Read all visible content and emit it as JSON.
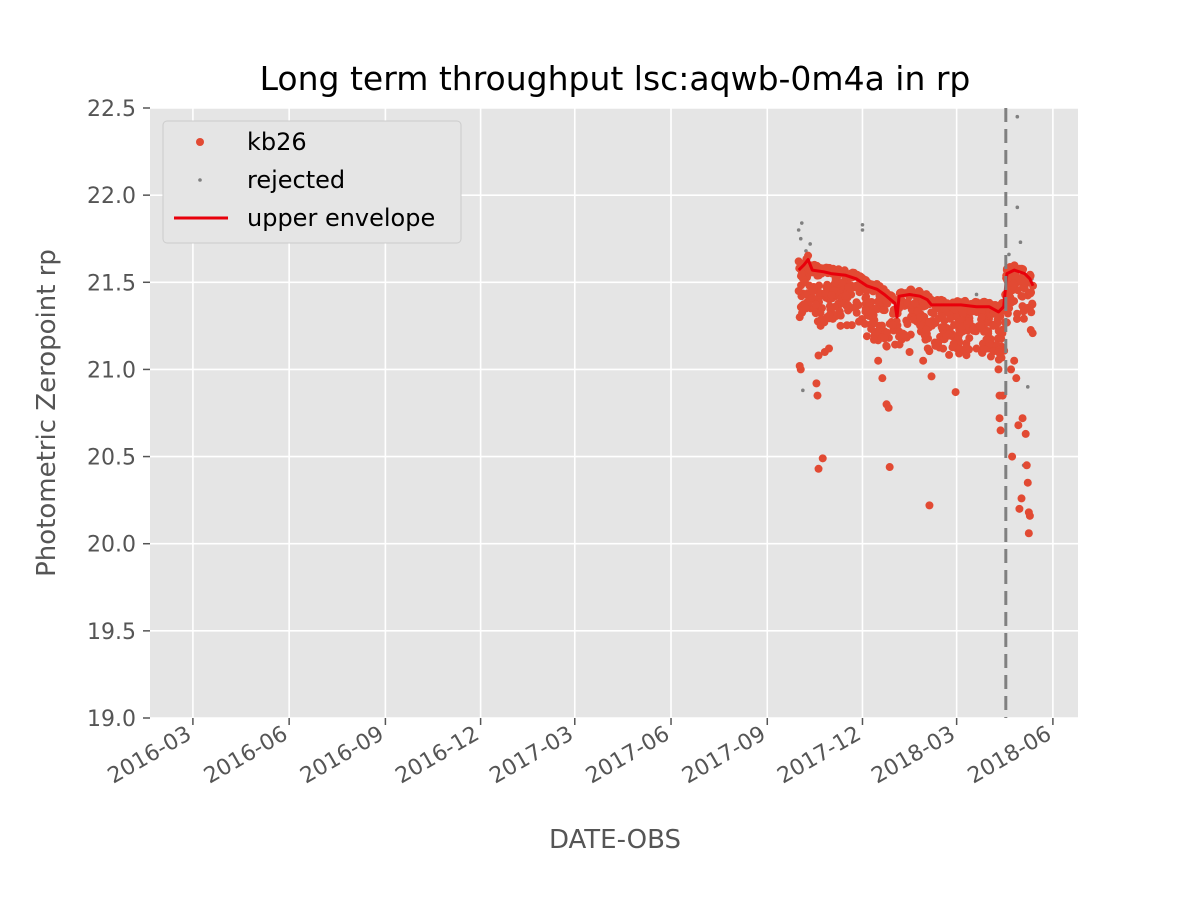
{
  "chart_data": {
    "type": "scatter",
    "title": "Long term throughput  lsc:aqwb-0m4a in rp",
    "xlabel": "DATE-OBS",
    "ylabel": "Photometric Zeropoint rp",
    "xlim": [
      "2016-01-20",
      "2018-06-25"
    ],
    "ylim": [
      19.0,
      22.5
    ],
    "x_ticks": [
      "2016-03",
      "2016-06",
      "2016-09",
      "2016-12",
      "2017-03",
      "2017-06",
      "2017-09",
      "2017-12",
      "2018-03",
      "2018-06"
    ],
    "y_ticks": [
      "19.0",
      "19.5",
      "20.0",
      "20.5",
      "21.0",
      "21.5",
      "22.0",
      "22.5"
    ],
    "grid": true,
    "legend_position": "top-left",
    "vline": {
      "x": "2018-04-17",
      "style": "dashed",
      "color": "#808080"
    },
    "series": [
      {
        "name": "kb26",
        "kind": "points",
        "color": "#e24a33",
        "points": [
          [
            "2017-10-01",
            21.62
          ],
          [
            "2017-10-01",
            21.45
          ],
          [
            "2017-10-02",
            21.3
          ],
          [
            "2017-10-02",
            21.02
          ],
          [
            "2017-10-03",
            21.0
          ],
          [
            "2017-10-04",
            21.55
          ],
          [
            "2017-10-05",
            21.6
          ],
          [
            "2017-10-07",
            21.5
          ],
          [
            "2017-10-08",
            21.35
          ],
          [
            "2017-10-10",
            21.58
          ],
          [
            "2017-10-12",
            21.57
          ],
          [
            "2017-10-14",
            21.45
          ],
          [
            "2017-10-16",
            21.6
          ],
          [
            "2017-10-18",
            20.92
          ],
          [
            "2017-10-19",
            20.85
          ],
          [
            "2017-10-20",
            21.08
          ],
          [
            "2017-10-20",
            20.43
          ],
          [
            "2017-10-22",
            21.25
          ],
          [
            "2017-10-23",
            21.55
          ],
          [
            "2017-10-24",
            20.49
          ],
          [
            "2017-10-26",
            21.1
          ],
          [
            "2017-10-28",
            21.3
          ],
          [
            "2017-10-30",
            21.12
          ],
          [
            "2017-11-02",
            21.55
          ],
          [
            "2017-11-05",
            21.5
          ],
          [
            "2017-11-10",
            21.25
          ],
          [
            "2017-11-15",
            21.53
          ],
          [
            "2017-11-20",
            21.55
          ],
          [
            "2017-11-25",
            21.48
          ],
          [
            "2017-11-30",
            21.5
          ],
          [
            "2017-12-05",
            21.45
          ],
          [
            "2017-12-10",
            21.3
          ],
          [
            "2017-12-12",
            21.17
          ],
          [
            "2017-12-16",
            21.05
          ],
          [
            "2017-12-20",
            20.95
          ],
          [
            "2017-12-24",
            20.8
          ],
          [
            "2017-12-26",
            20.78
          ],
          [
            "2017-12-27",
            20.44
          ],
          [
            "2018-01-01",
            21.4
          ],
          [
            "2018-01-05",
            21.35
          ],
          [
            "2018-01-10",
            21.2
          ],
          [
            "2018-01-15",
            21.1
          ],
          [
            "2018-01-20",
            21.38
          ],
          [
            "2018-01-25",
            21.3
          ],
          [
            "2018-01-28",
            21.05
          ],
          [
            "2018-02-03",
            20.22
          ],
          [
            "2018-02-05",
            20.96
          ],
          [
            "2018-02-10",
            21.35
          ],
          [
            "2018-02-20",
            21.38
          ],
          [
            "2018-02-28",
            20.87
          ],
          [
            "2018-03-05",
            21.35
          ],
          [
            "2018-03-15",
            21.33
          ],
          [
            "2018-03-25",
            21.3
          ],
          [
            "2018-04-05",
            21.25
          ],
          [
            "2018-04-10",
            21.1
          ],
          [
            "2018-04-10",
            21.0
          ],
          [
            "2018-04-11",
            20.85
          ],
          [
            "2018-04-11",
            20.72
          ],
          [
            "2018-04-12",
            20.65
          ],
          [
            "2018-04-14",
            20.85
          ],
          [
            "2018-04-18",
            21.57
          ],
          [
            "2018-04-20",
            21.4
          ],
          [
            "2018-04-22",
            21.0
          ],
          [
            "2018-04-23",
            20.5
          ],
          [
            "2018-04-25",
            21.05
          ],
          [
            "2018-04-27",
            20.95
          ],
          [
            "2018-04-29",
            20.68
          ],
          [
            "2018-04-30",
            20.2
          ],
          [
            "2018-05-02",
            20.26
          ],
          [
            "2018-05-03",
            20.72
          ],
          [
            "2018-05-05",
            21.5
          ],
          [
            "2018-05-06",
            20.63
          ],
          [
            "2018-05-07",
            20.45
          ],
          [
            "2018-05-08",
            20.35
          ],
          [
            "2018-05-09",
            20.18
          ],
          [
            "2018-05-09",
            20.06
          ],
          [
            "2018-05-10",
            20.16
          ],
          [
            "2018-05-13",
            21.48
          ]
        ]
      },
      {
        "name": "rejected",
        "kind": "points",
        "color": "#808080",
        "points": [
          [
            "2017-10-01",
            21.8
          ],
          [
            "2017-10-03",
            21.75
          ],
          [
            "2017-10-04",
            21.84
          ],
          [
            "2017-10-05",
            20.88
          ],
          [
            "2017-10-08",
            21.68
          ],
          [
            "2017-10-12",
            21.72
          ],
          [
            "2017-12-01",
            21.83
          ],
          [
            "2017-12-01",
            21.8
          ],
          [
            "2018-01-15",
            21.4
          ],
          [
            "2018-03-20",
            21.43
          ],
          [
            "2018-04-20",
            21.66
          ],
          [
            "2018-04-25",
            21.6
          ],
          [
            "2018-04-28",
            21.93
          ],
          [
            "2018-04-28",
            22.45
          ],
          [
            "2018-05-01",
            21.73
          ],
          [
            "2018-05-03",
            21.5
          ],
          [
            "2018-05-04",
            20.45
          ],
          [
            "2018-05-08",
            20.9
          ],
          [
            "2018-05-12",
            21.52
          ]
        ]
      },
      {
        "name": "upper envelope",
        "kind": "line",
        "color": "#e8000b",
        "points": [
          [
            "2017-10-01",
            21.57
          ],
          [
            "2017-10-06",
            21.6
          ],
          [
            "2017-10-10",
            21.63
          ],
          [
            "2017-10-14",
            21.57
          ],
          [
            "2017-10-25",
            21.56
          ],
          [
            "2017-11-01",
            21.55
          ],
          [
            "2017-11-15",
            21.54
          ],
          [
            "2017-11-25",
            21.52
          ],
          [
            "2017-12-05",
            21.48
          ],
          [
            "2017-12-15",
            21.46
          ],
          [
            "2017-12-22",
            21.43
          ],
          [
            "2018-01-01",
            21.38
          ],
          [
            "2018-01-03",
            21.3
          ],
          [
            "2018-01-05",
            21.42
          ],
          [
            "2018-01-15",
            21.43
          ],
          [
            "2018-01-25",
            21.42
          ],
          [
            "2018-02-01",
            21.4
          ],
          [
            "2018-02-05",
            21.37
          ],
          [
            "2018-02-20",
            21.37
          ],
          [
            "2018-03-05",
            21.37
          ],
          [
            "2018-03-20",
            21.36
          ],
          [
            "2018-04-01",
            21.36
          ],
          [
            "2018-04-10",
            21.33
          ],
          [
            "2018-04-15",
            21.36
          ],
          [
            "2018-04-18",
            21.55
          ],
          [
            "2018-04-25",
            21.57
          ],
          [
            "2018-05-05",
            21.55
          ],
          [
            "2018-05-10",
            21.52
          ],
          [
            "2018-05-13",
            21.48
          ]
        ]
      }
    ]
  }
}
